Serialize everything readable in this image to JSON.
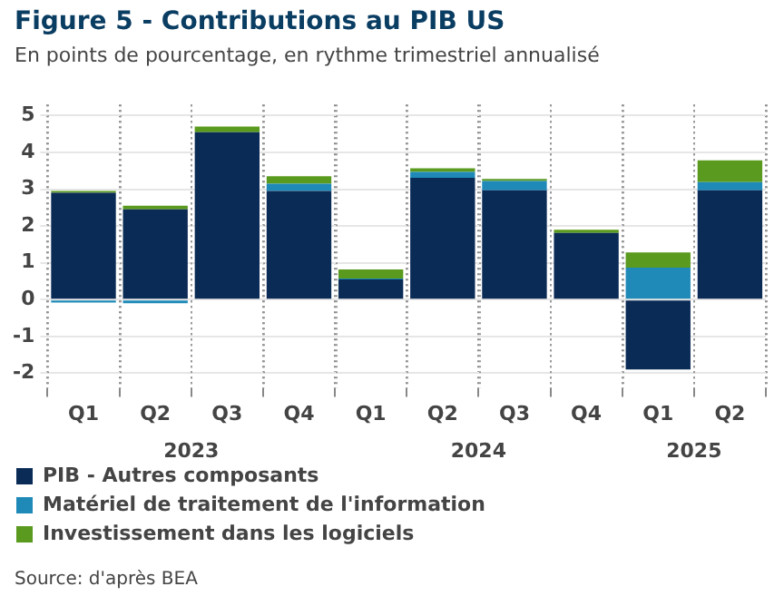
{
  "chart_data": {
    "type": "bar",
    "title": "Figure 5 - Contributions au PIB US",
    "subtitle": "En points de pourcentage, en rythme trimestriel annualisé",
    "categories": [
      "Q1",
      "Q2",
      "Q3",
      "Q4",
      "Q1",
      "Q2",
      "Q3",
      "Q4",
      "Q1",
      "Q2"
    ],
    "series": [
      {
        "name": "PIB - Autres composants",
        "color": "#0a2b56",
        "values": [
          2.9,
          2.45,
          4.55,
          2.95,
          0.55,
          3.31,
          2.97,
          1.81,
          -1.9,
          2.97
        ]
      },
      {
        "name": "Matériel de traitement de l'information",
        "color": "#1f8ab8",
        "values": [
          -0.08,
          -0.1,
          null,
          0.2,
          0.02,
          0.16,
          0.25,
          0.0,
          0.87,
          0.22
        ]
      },
      {
        "name": "Investissement dans les logiciels",
        "color": "#5a9a1e",
        "values": [
          0.05,
          0.1,
          0.15,
          0.2,
          0.25,
          0.1,
          0.06,
          0.09,
          0.41,
          0.59
        ]
      }
    ],
    "stacked": true,
    "ylim": [
      -2.4,
      5.3
    ],
    "yticks": [
      -2,
      -1,
      0,
      1,
      2,
      3,
      4,
      5
    ],
    "grid": true,
    "legend": "bottom",
    "annotations": [
      "2023",
      "2024",
      "2025",
      "Source: d'après BEA"
    ]
  }
}
